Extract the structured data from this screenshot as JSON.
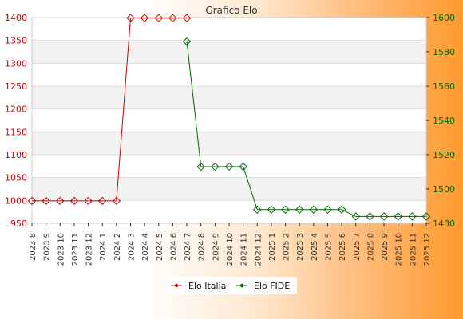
{
  "chart_data": {
    "type": "line",
    "title": "Grafico Elo",
    "categories": [
      "2023 8",
      "2023 9",
      "2023 10",
      "2023 11",
      "2023 12",
      "2024 1",
      "2024 2",
      "2024 3",
      "2024 4",
      "2024 5",
      "2024 6",
      "2024 7",
      "2024 8",
      "2024 9",
      "2024 10",
      "2024 11",
      "2024 12",
      "2025 1",
      "2025 2",
      "2025 3",
      "2025 4",
      "2025 5",
      "2025 6",
      "2025 7",
      "2025 8",
      "2025 9",
      "2025 10",
      "2025 11",
      "2025 12"
    ],
    "y_left": {
      "min": 950,
      "max": 1400,
      "ticks": [
        950,
        1000,
        1050,
        1100,
        1150,
        1200,
        1250,
        1300,
        1350,
        1400
      ]
    },
    "y_right": {
      "min": 1480,
      "max": 1600,
      "ticks": [
        1480,
        1500,
        1520,
        1540,
        1560,
        1580,
        1600
      ]
    },
    "series": [
      {
        "name": "Elo Italia",
        "axis": "left",
        "color": "#cc0000",
        "values": [
          999,
          999,
          999,
          999,
          999,
          999,
          999,
          1399,
          1399,
          1399,
          1399,
          1399,
          null,
          null,
          null,
          null,
          null,
          null,
          null,
          null,
          null,
          null,
          null,
          null,
          null,
          null,
          null,
          null,
          null
        ]
      },
      {
        "name": "Elo FIDE",
        "axis": "right",
        "color": "#006600",
        "values": [
          null,
          null,
          null,
          null,
          null,
          null,
          null,
          null,
          null,
          null,
          null,
          1586,
          1513,
          1513,
          1513,
          1513,
          1488,
          1488,
          1488,
          1488,
          1488,
          1488,
          1488,
          1484,
          1484,
          1484,
          1484,
          1484,
          1484
        ]
      }
    ],
    "grid": true,
    "legend_position": "bottom-center"
  }
}
